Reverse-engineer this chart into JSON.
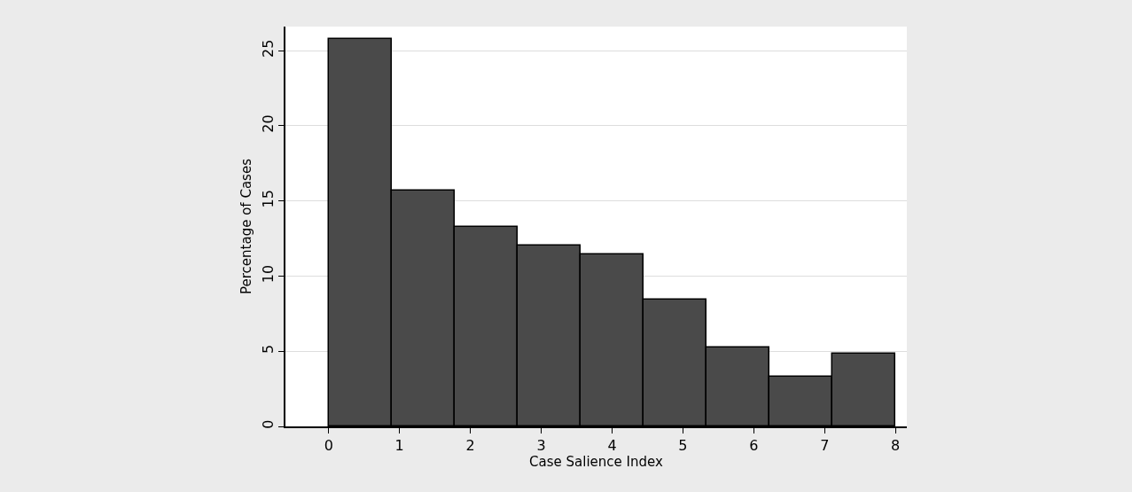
{
  "chart_data": {
    "type": "histogram",
    "xlabel": "Case Salience Index",
    "ylabel": "Percentage of Cases",
    "bins": [
      0,
      0.89,
      1.78,
      2.67,
      3.56,
      4.44,
      5.33,
      6.22,
      7.11,
      8
    ],
    "values": [
      25.75,
      15.68,
      13.25,
      12.03,
      11.42,
      8.45,
      5.26,
      3.33,
      4.84
    ],
    "color": "#4a4a4a",
    "xlim": [
      -0.61,
      8.16
    ],
    "xticks": [
      0,
      1,
      2,
      3,
      4,
      5,
      6,
      7,
      8
    ],
    "ylim": [
      0,
      26.6
    ],
    "yticks": [
      0,
      5,
      10,
      15,
      20,
      25
    ],
    "grid": "y"
  }
}
